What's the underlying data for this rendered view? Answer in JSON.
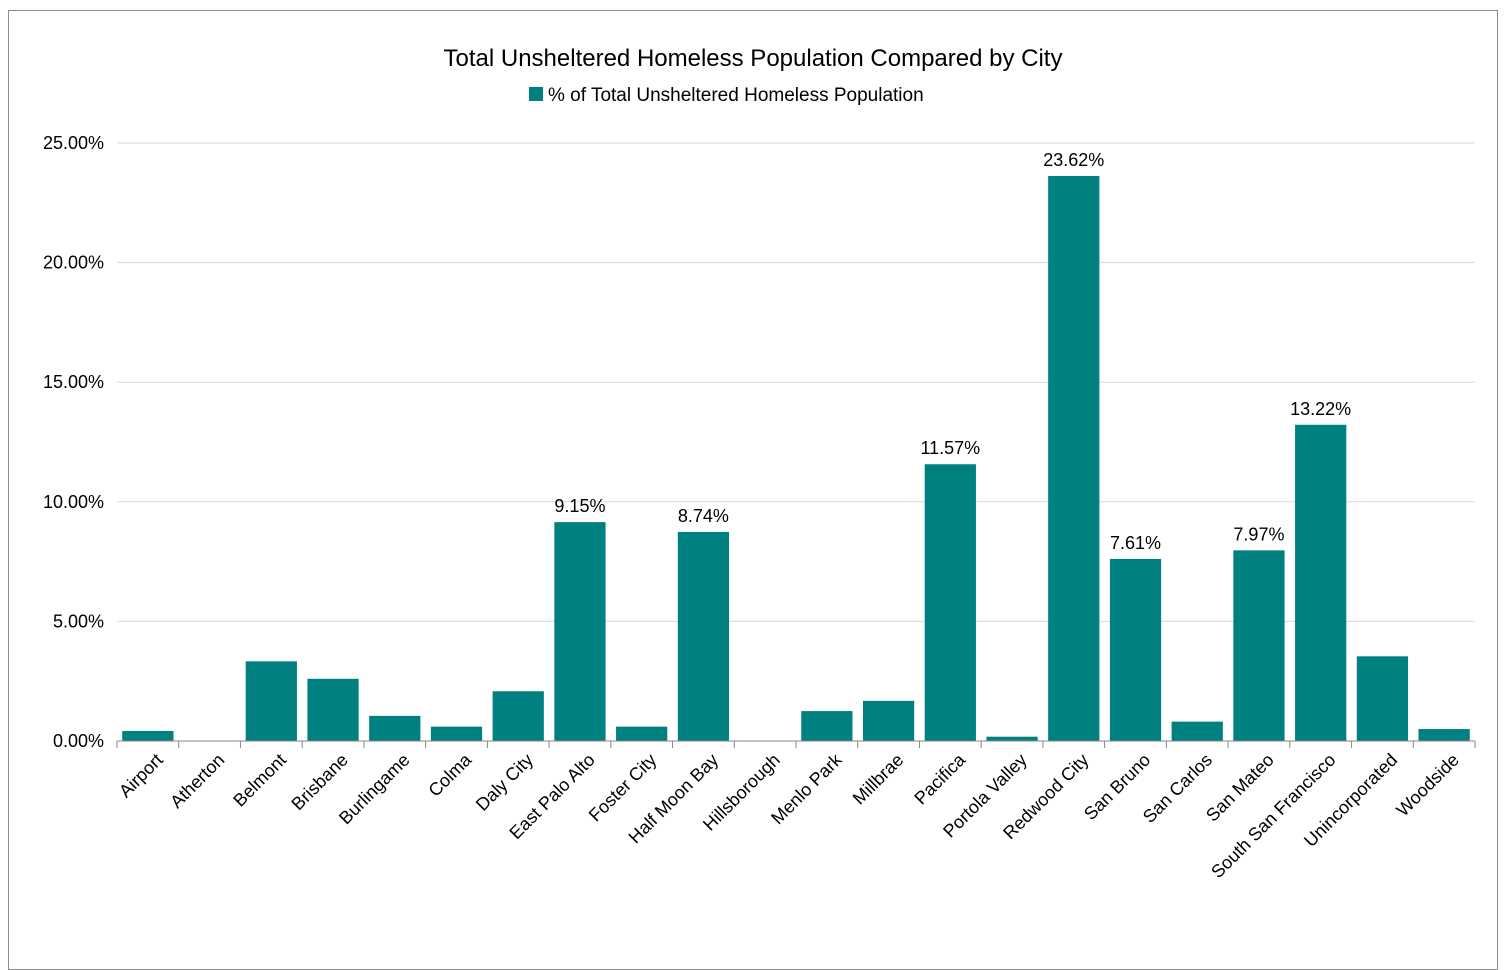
{
  "chart_data": {
    "type": "bar",
    "title": "Total Unsheltered Homeless Population Compared by City",
    "series": [
      {
        "name": "% of Total Unsheltered Homeless Population",
        "color": "#008080",
        "values": [
          0.42,
          0.0,
          3.33,
          2.6,
          1.05,
          0.6,
          2.08,
          9.15,
          0.6,
          8.74,
          0.0,
          1.25,
          1.68,
          11.57,
          0.18,
          23.62,
          7.61,
          0.81,
          7.97,
          13.22,
          3.54,
          0.5
        ]
      }
    ],
    "categories": [
      "Airport",
      "Atherton",
      "Belmont",
      "Brisbane",
      "Burlingame",
      "Colma",
      "Daly City",
      "East Palo Alto",
      "Foster City",
      "Half Moon Bay",
      "Hillsborough",
      "Menlo Park",
      "Millbrae",
      "Pacifica",
      "Portola Valley",
      "Redwood City",
      "San Bruno",
      "San Carlos",
      "San Mateo",
      "South San Francisco",
      "Unincorporated",
      "Woodside"
    ],
    "data_labels": [
      "",
      "",
      "",
      "",
      "",
      "",
      "",
      "9.15%",
      "",
      "8.74%",
      "",
      "",
      "",
      "11.57%",
      "",
      "23.62%",
      "7.61%",
      "",
      "7.97%",
      "13.22%",
      "",
      ""
    ],
    "y_ticks": [
      "0.00%",
      "5.00%",
      "10.00%",
      "15.00%",
      "20.00%",
      "25.00%"
    ],
    "ylim": [
      0,
      25
    ],
    "xlabel": "",
    "ylabel": "",
    "grid": true,
    "legend_position": "top"
  }
}
